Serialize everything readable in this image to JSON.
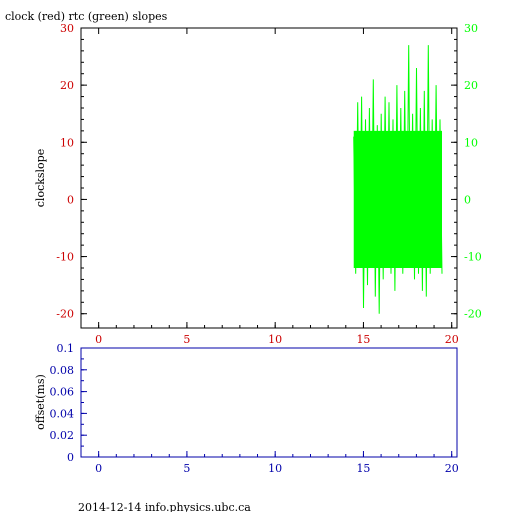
{
  "title": "clock (red) rtc (green) slopes",
  "footer": "2014-12-14 info.physics.ubc.ca",
  "colors": {
    "clock": "#cc0000",
    "rtc": "#00ff00",
    "offset": "#0000aa",
    "axis": "#000000"
  },
  "chart_data": [
    {
      "type": "line",
      "ylabel": "clockslope",
      "x_range": [
        -1,
        20.3
      ],
      "x_ticks": [
        0,
        5,
        10,
        15,
        20
      ],
      "y_range": [
        -22.5,
        30
      ],
      "y_ticks_left": [
        -20,
        -10,
        0,
        10,
        20,
        30
      ],
      "y_ticks_right": [
        -20,
        -10,
        0,
        10,
        20,
        30
      ],
      "series": [
        {
          "name": "rtc",
          "x_start": 14.45,
          "x_end": 19.45,
          "typical_range": [
            -12,
            12
          ],
          "values": [
            11,
            -13,
            17,
            -11,
            18,
            -19,
            14,
            -15,
            16,
            -12,
            21,
            -17,
            13,
            -20,
            15,
            -14,
            18,
            -12,
            17,
            -13,
            14,
            -16,
            20,
            -11,
            16,
            -13,
            19,
            -12,
            27,
            -12,
            15,
            -14,
            23,
            -13,
            16,
            -16,
            19,
            -17,
            27,
            -13,
            14,
            -12,
            20,
            -12,
            14,
            -13
          ]
        }
      ]
    },
    {
      "type": "line",
      "ylabel": "offset(ms)",
      "x_range": [
        -1,
        20.3
      ],
      "x_ticks": [
        0,
        5,
        10,
        15,
        20
      ],
      "y_range": [
        0,
        0.1
      ],
      "y_ticks": [
        "0",
        "0.02",
        "0.04",
        "0.06",
        "0.08",
        "0.1"
      ],
      "series": []
    }
  ]
}
